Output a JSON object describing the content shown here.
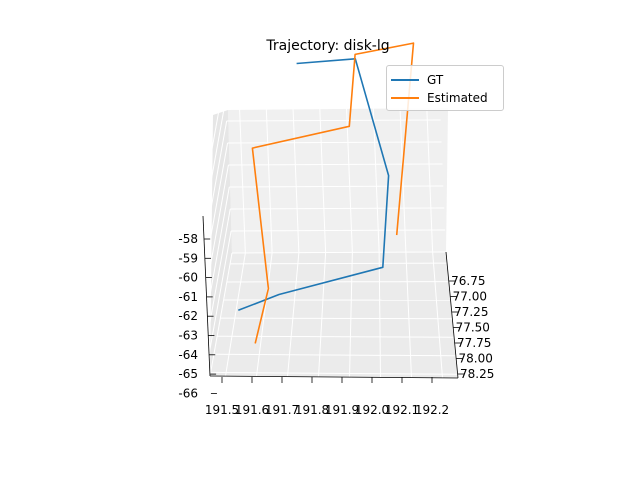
{
  "chart_data": {
    "type": "line",
    "projection": "3d",
    "title": "Trajectory: disk-lg",
    "xlabel": "",
    "ylabel": "",
    "zlabel": "",
    "x_ticks": [
      "191.5",
      "191.6",
      "191.7",
      "191.8",
      "191.9",
      "192.0",
      "192.1",
      "192.2"
    ],
    "y_ticks": [
      "76.75",
      "77.00",
      "77.25",
      "77.50",
      "77.75",
      "78.00",
      "78.25"
    ],
    "z_ticks": [
      "-58",
      "-59",
      "-60",
      "-61",
      "-62",
      "-63",
      "-64",
      "-65",
      "-66"
    ],
    "xlim": [
      191.45,
      192.25
    ],
    "ylim": [
      76.6,
      78.3
    ],
    "zlim": [
      -66,
      -57
    ],
    "grid": true,
    "legend_position": "top-right",
    "series": [
      {
        "name": "GT",
        "color": "#1f77b4",
        "points": [
          {
            "x": 191.72,
            "y": 76.6,
            "z": -57.4
          },
          {
            "x": 191.94,
            "y": 76.6,
            "z": -57.2
          },
          {
            "x": 192.05,
            "y": 77.5,
            "z": -59.5
          },
          {
            "x": 192.02,
            "y": 78.0,
            "z": -62.0
          },
          {
            "x": 191.68,
            "y": 78.2,
            "z": -62.6
          },
          {
            "x": 191.55,
            "y": 78.3,
            "z": -63.0
          }
        ]
      },
      {
        "name": "Estimated",
        "color": "#ff7f0e",
        "points": [
          {
            "x": 191.6,
            "y": 78.3,
            "z": -64.5
          },
          {
            "x": 191.65,
            "y": 78.3,
            "z": -62.0
          },
          {
            "x": 191.58,
            "y": 77.4,
            "z": -58.6
          },
          {
            "x": 191.92,
            "y": 77.4,
            "z": -57.6
          },
          {
            "x": 191.94,
            "y": 76.6,
            "z": -57.0
          },
          {
            "x": 192.16,
            "y": 76.6,
            "z": -56.5
          },
          {
            "x": 192.07,
            "y": 77.8,
            "z": -61.2
          }
        ]
      }
    ]
  }
}
